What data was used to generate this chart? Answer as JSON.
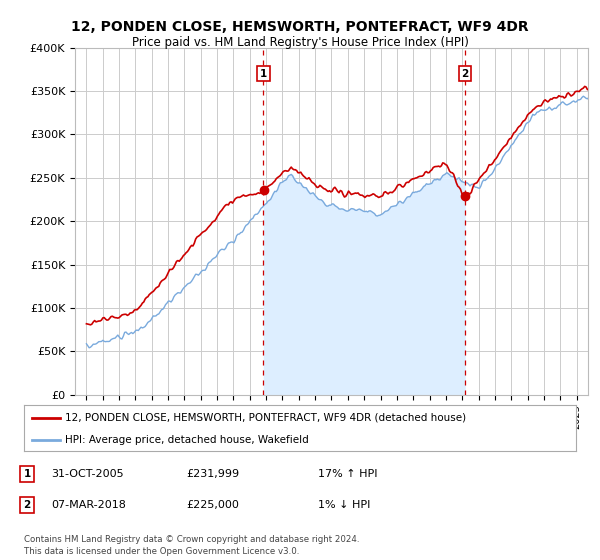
{
  "title": "12, PONDEN CLOSE, HEMSWORTH, PONTEFRACT, WF9 4DR",
  "subtitle": "Price paid vs. HM Land Registry's House Price Index (HPI)",
  "ylim": [
    0,
    400000
  ],
  "yticks": [
    0,
    50000,
    100000,
    150000,
    200000,
    250000,
    300000,
    350000,
    400000
  ],
  "ytick_labels": [
    "£0",
    "£50K",
    "£100K",
    "£150K",
    "£200K",
    "£250K",
    "£300K",
    "£350K",
    "£400K"
  ],
  "sale1_date_num": 2005.83,
  "sale1_price": 231999,
  "sale2_date_num": 2018.18,
  "sale2_price": 225000,
  "legend_line1": "12, PONDEN CLOSE, HEMSWORTH, PONTEFRACT, WF9 4DR (detached house)",
  "legend_line2": "HPI: Average price, detached house, Wakefield",
  "footer": "Contains HM Land Registry data © Crown copyright and database right 2024.\nThis data is licensed under the Open Government Licence v3.0.",
  "hpi_color": "#7aaadd",
  "hpi_fill_color": "#ddeeff",
  "price_color": "#cc0000",
  "vline_color": "#cc0000",
  "background_color": "#ffffff",
  "grid_color": "#cccccc",
  "sale1_label_text": "1",
  "sale2_label_text": "2",
  "sale1_date_str": "31-OCT-2005",
  "sale1_price_str": "£231,999",
  "sale1_pct_str": "17% ↑ HPI",
  "sale2_date_str": "07-MAR-2018",
  "sale2_price_str": "£225,000",
  "sale2_pct_str": "1% ↓ HPI"
}
